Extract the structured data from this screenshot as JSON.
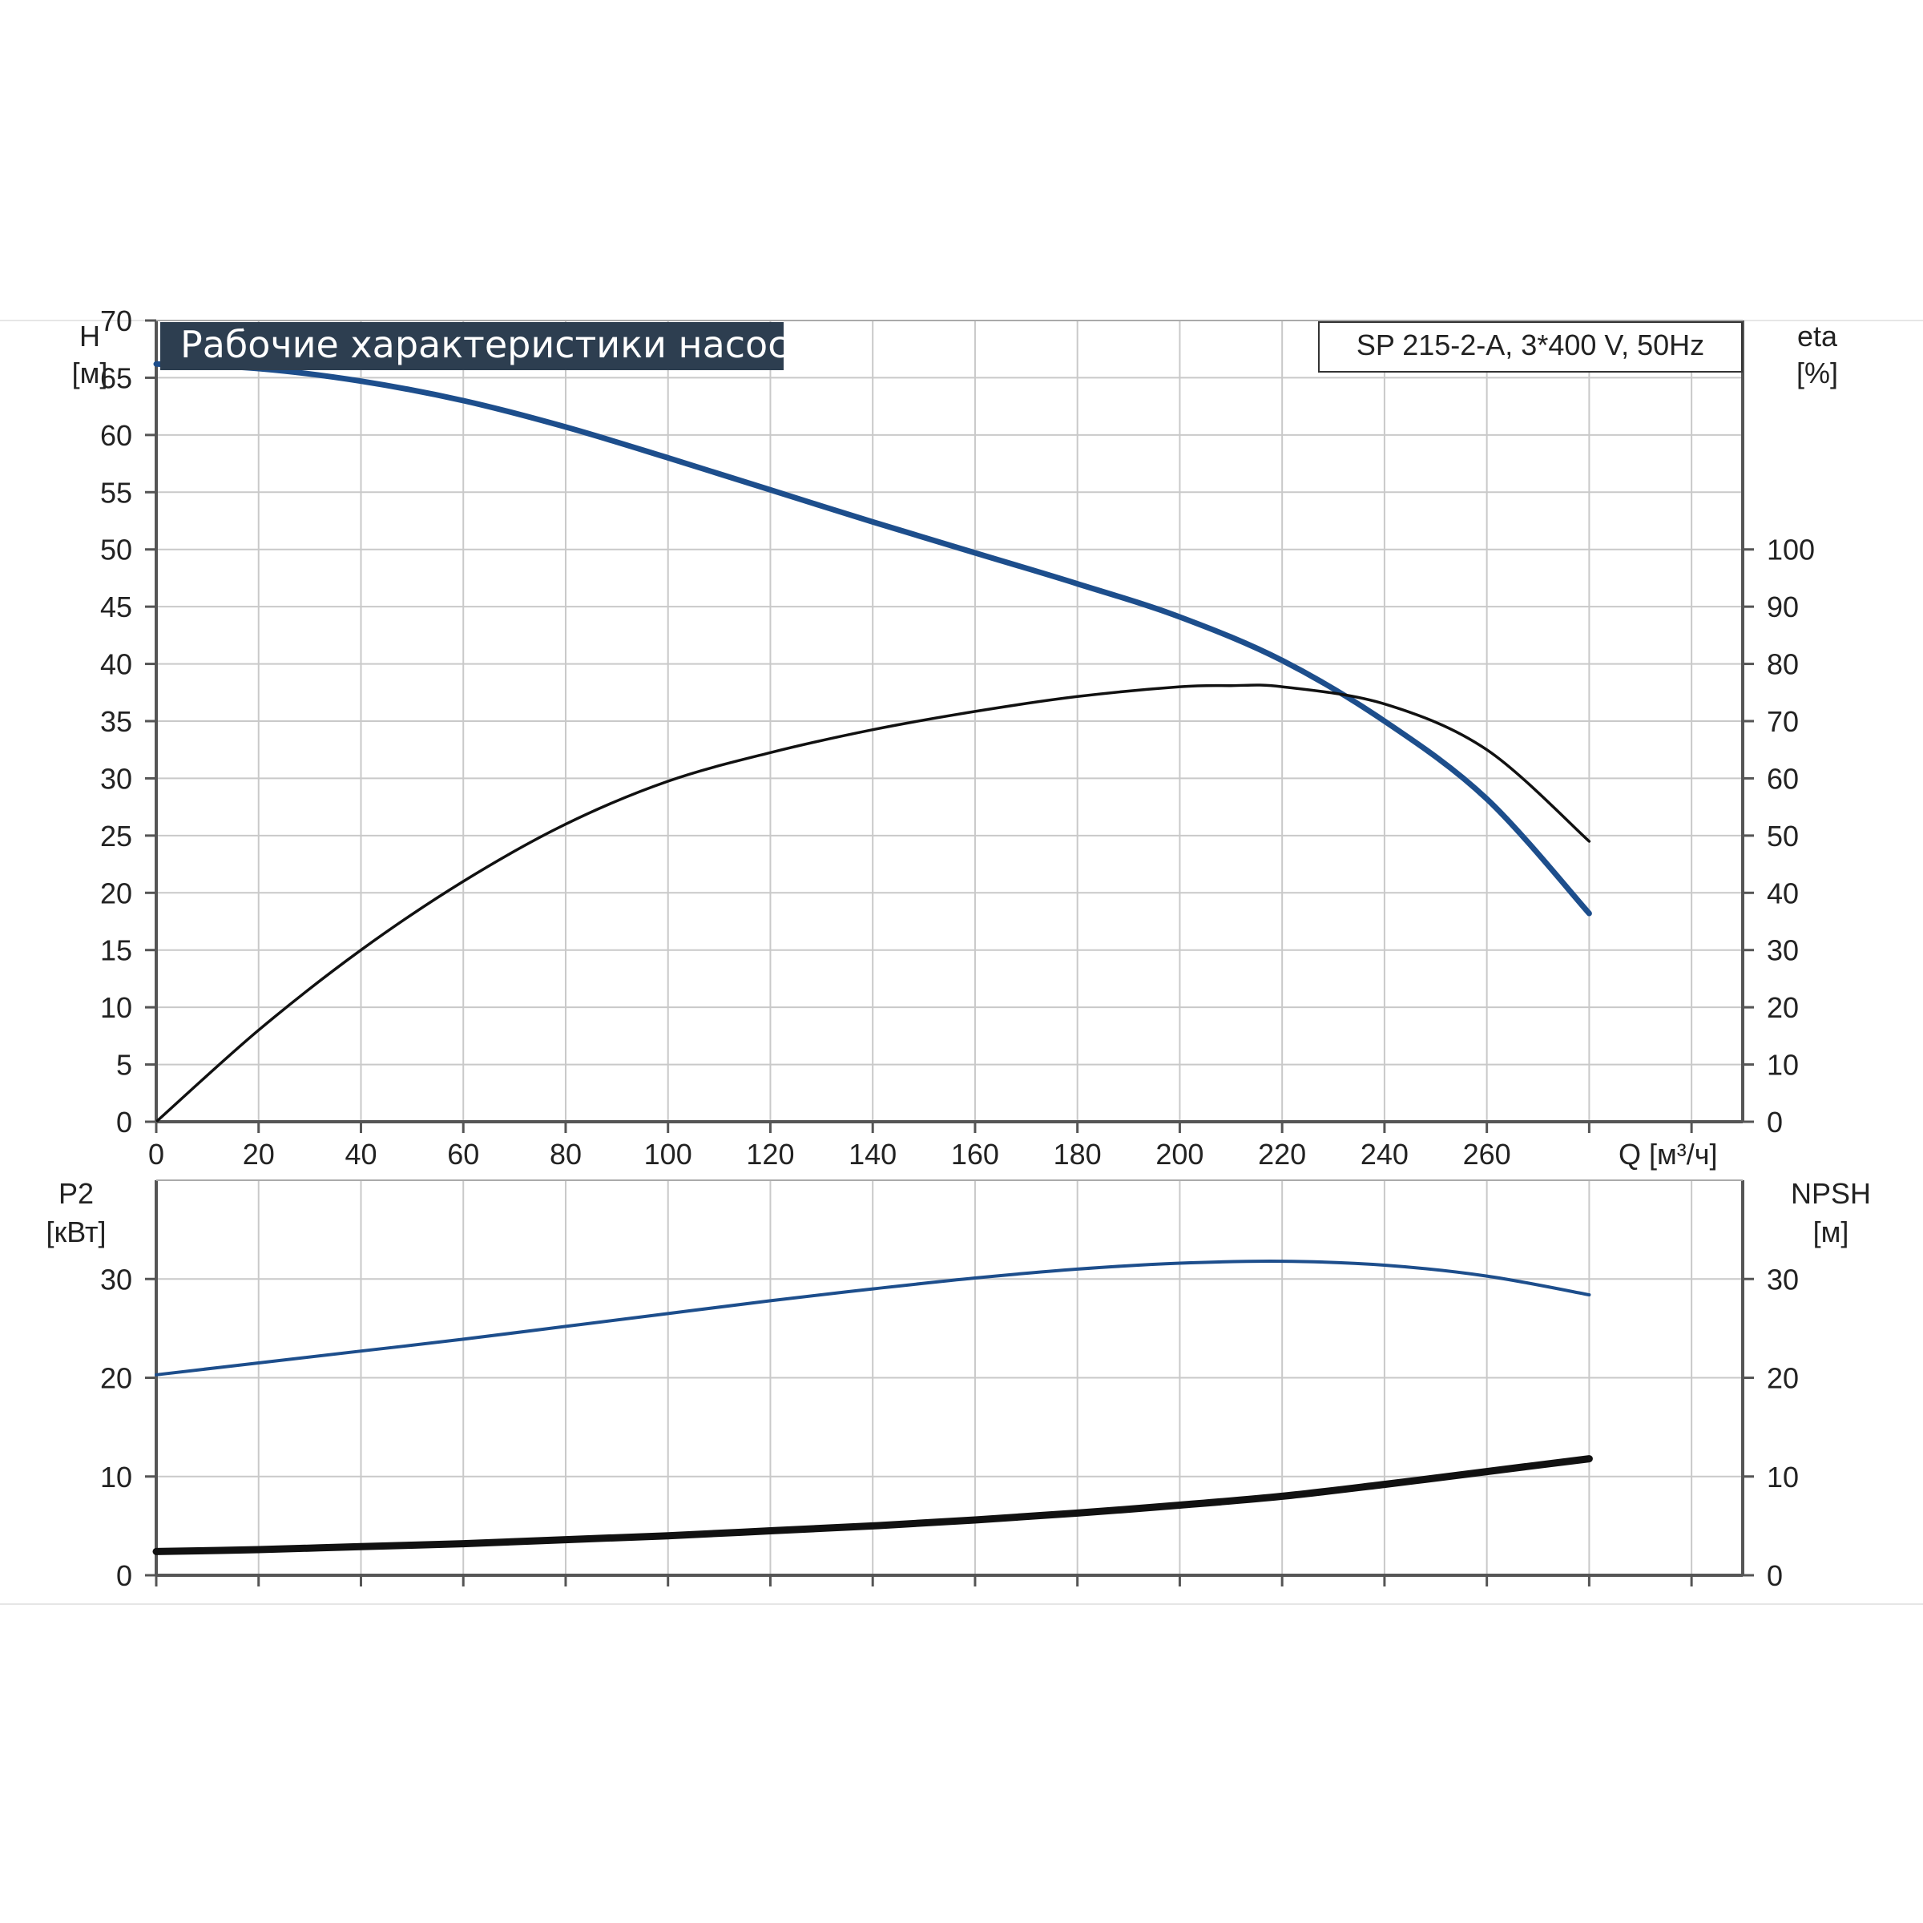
{
  "header": {
    "title": "Рабочие характеристики насоса",
    "model": "SP 215-2-A, 3*400 V, 50Hz"
  },
  "chart_data": [
    {
      "type": "line",
      "title": "Рабочие характеристики насоса",
      "xlabel": "Q [м³/ч]",
      "x_ticks": [
        "0",
        "20",
        "40",
        "60",
        "80",
        "100",
        "120",
        "140",
        "160",
        "180",
        "200",
        "220",
        "240",
        "260"
      ],
      "xlim": [
        0,
        310
      ],
      "left_axis": {
        "label_top": "H",
        "label_unit": "[м]",
        "ylim": [
          0,
          70
        ],
        "ticks": [
          "0",
          "5",
          "10",
          "15",
          "20",
          "25",
          "30",
          "35",
          "40",
          "45",
          "50",
          "55",
          "60",
          "65",
          "70"
        ]
      },
      "right_axis": {
        "label_top": "eta",
        "label_unit": "[%]",
        "ylim": [
          0,
          140
        ],
        "ticks": [
          "0",
          "10",
          "20",
          "30",
          "40",
          "50",
          "60",
          "70",
          "80",
          "90",
          "100"
        ]
      },
      "grid": true,
      "series": [
        {
          "axis": "left",
          "color": "#1d4e8c",
          "x": [
            0,
            20,
            40,
            60,
            80,
            100,
            120,
            140,
            160,
            180,
            200,
            220,
            240,
            260,
            280
          ],
          "y": [
            66.2,
            65.8,
            64.7,
            63.0,
            60.7,
            58.0,
            55.2,
            52.4,
            49.7,
            47.0,
            44.1,
            40.3,
            35.0,
            28.2,
            18.2
          ]
        },
        {
          "axis": "right",
          "color": "#111111",
          "x": [
            0,
            20,
            40,
            60,
            80,
            100,
            120,
            140,
            160,
            180,
            200,
            210,
            220,
            240,
            260,
            280
          ],
          "y": [
            0,
            16,
            30,
            42,
            52,
            59.5,
            64.5,
            68.5,
            71.7,
            74.3,
            76.0,
            76.2,
            76.0,
            73.0,
            65.0,
            49.0
          ]
        }
      ]
    },
    {
      "type": "line",
      "xlim": [
        0,
        310
      ],
      "left_axis": {
        "label_top": "P2",
        "label_unit": "[кВт]",
        "ylim": [
          0,
          40
        ],
        "ticks": [
          "0",
          "10",
          "20",
          "30"
        ]
      },
      "right_axis": {
        "label_top": "NPSH",
        "label_unit": "[м]",
        "ylim": [
          0,
          40
        ],
        "ticks": [
          "0",
          "10",
          "20",
          "30"
        ]
      },
      "grid": true,
      "series": [
        {
          "axis": "left",
          "color": "#1d4e8c",
          "x": [
            0,
            20,
            40,
            60,
            80,
            100,
            120,
            140,
            160,
            180,
            200,
            220,
            240,
            260,
            280
          ],
          "y": [
            20.3,
            21.5,
            22.7,
            23.9,
            25.2,
            26.5,
            27.8,
            29.0,
            30.1,
            31.0,
            31.6,
            31.8,
            31.4,
            30.3,
            28.4
          ]
        },
        {
          "axis": "right",
          "color": "#111111",
          "x": [
            0,
            20,
            40,
            60,
            80,
            100,
            120,
            140,
            160,
            180,
            200,
            220,
            240,
            260,
            280
          ],
          "y": [
            2.4,
            2.6,
            2.9,
            3.2,
            3.6,
            4.0,
            4.5,
            5.0,
            5.6,
            6.3,
            7.1,
            8.0,
            9.2,
            10.5,
            11.8
          ]
        }
      ]
    }
  ]
}
